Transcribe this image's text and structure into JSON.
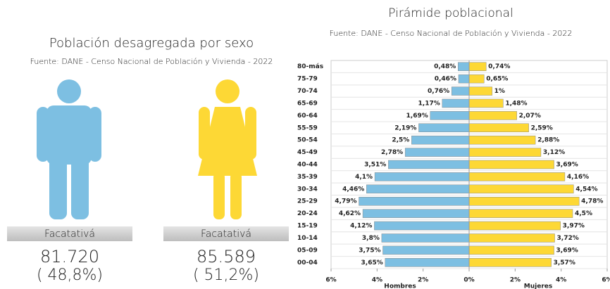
{
  "sex_panel": {
    "title": "Población desagregada por sexo",
    "source": "Fuente: DANE - Censo Nacional de Población y Vivienda - 2022",
    "groups": [
      {
        "place": "Facatativá",
        "count": "81.720",
        "percent": "( 48,8%)",
        "color": "#7dbfe2"
      },
      {
        "place": "Facatativá",
        "count": "85.589",
        "percent": "( 51,2%)",
        "color": "#fdd835"
      }
    ]
  },
  "chart_data": {
    "type": "pyramid",
    "title": "Pirámide poblacional",
    "subtitle": "Fuente: DANE - Censo Nacional de Población y Vivienda - 2022",
    "categories": [
      "80-más",
      "75-79",
      "70-74",
      "65-69",
      "60-64",
      "55-59",
      "50-54",
      "45-49",
      "40-44",
      "35-39",
      "30-34",
      "25-29",
      "20-24",
      "15-19",
      "10-14",
      "05-09",
      "00-04"
    ],
    "series": [
      {
        "name": "Hombres",
        "color": "#7dbfe2",
        "values": [
          0.48,
          0.46,
          0.76,
          1.17,
          1.69,
          2.19,
          2.5,
          2.78,
          3.51,
          4.1,
          4.46,
          4.79,
          4.62,
          4.12,
          3.8,
          3.75,
          3.65
        ],
        "value_labels": [
          "0,48%",
          "0,46%",
          "0,76%",
          "1,17%",
          "1,69%",
          "2,19%",
          "2,5%",
          "2,78%",
          "3,51%",
          "4,1%",
          "4,46%",
          "4,79%",
          "4,62%",
          "4,12%",
          "3,8%",
          "3,75%",
          "3,65%"
        ]
      },
      {
        "name": "Mujeres",
        "color": "#fdd835",
        "values": [
          0.74,
          0.65,
          1,
          1.48,
          2.07,
          2.59,
          2.88,
          3.12,
          3.69,
          4.16,
          4.54,
          4.78,
          4.5,
          3.97,
          3.72,
          3.69,
          3.57
        ],
        "value_labels": [
          "0,74%",
          "0,65%",
          "1%",
          "1,48%",
          "2,07%",
          "2,59%",
          "2,88%",
          "3,12%",
          "3,69%",
          "4,16%",
          "4,54%",
          "4,78%",
          "4,5%",
          "3,97%",
          "3,72%",
          "3,69%",
          "3,57%"
        ]
      }
    ],
    "xlim": [
      -6,
      6
    ],
    "xticks": [
      {
        "value": -6,
        "label": "6%"
      },
      {
        "value": -4,
        "label": "4%"
      },
      {
        "value": -2,
        "label": "2%"
      },
      {
        "value": 0,
        "label": "0%"
      },
      {
        "value": 2,
        "label": "2%"
      },
      {
        "value": 4,
        "label": "4%"
      },
      {
        "value": 6,
        "label": "6%"
      }
    ],
    "grid": true
  }
}
